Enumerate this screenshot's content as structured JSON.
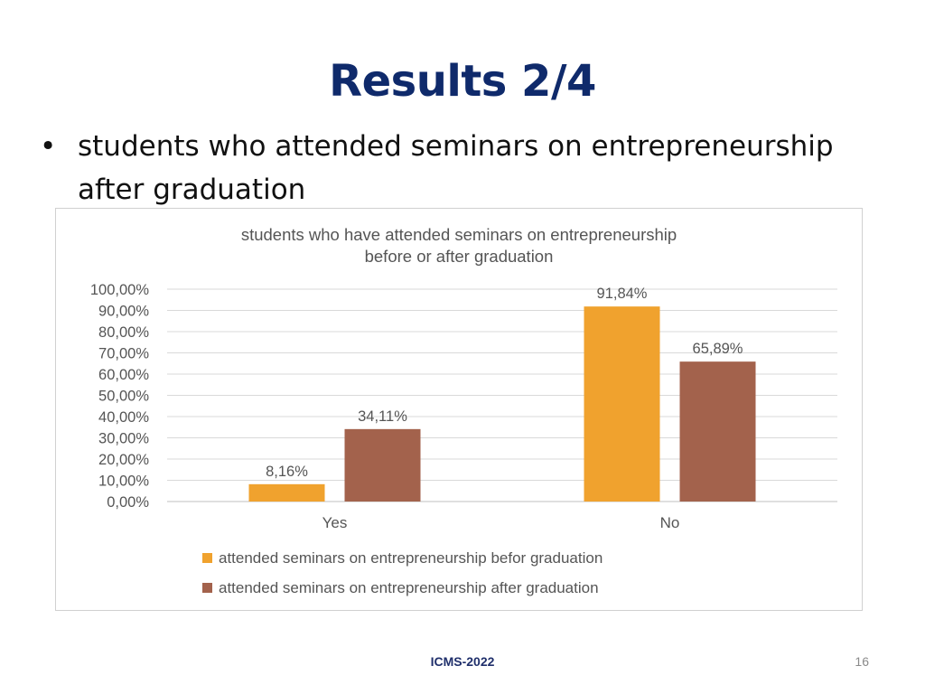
{
  "slide": {
    "title": "Results 2/4",
    "bullet_symbol": "•",
    "bullet_text": "students who attended seminars on entrepreneurship after graduation",
    "footer": "ICMS-2022",
    "page_number": "16"
  },
  "chart_data": {
    "type": "bar",
    "title_lines": [
      "students who have attended seminars on entrepreneurship",
      "before or after graduation"
    ],
    "categories": [
      "Yes",
      "No"
    ],
    "series": [
      {
        "name": "attended seminars on entrepreneurship befor graduation",
        "values": [
          8.16,
          91.84
        ],
        "labels": [
          "8,16%",
          "91,84%"
        ],
        "color": "#f0a22e"
      },
      {
        "name": "attended seminars on entrepreneurship after graduation",
        "values": [
          34.11,
          65.89
        ],
        "labels": [
          "34,11%",
          "65,89%"
        ],
        "color": "#a3624c"
      }
    ],
    "ylim": [
      0,
      100
    ],
    "yticks": [
      0,
      10,
      20,
      30,
      40,
      50,
      60,
      70,
      80,
      90,
      100
    ],
    "ytick_labels": [
      "0,00%",
      "10,00%",
      "20,00%",
      "30,00%",
      "40,00%",
      "50,00%",
      "60,00%",
      "70,00%",
      "80,00%",
      "90,00%",
      "100,00%"
    ],
    "grid": true,
    "legend_position": "bottom"
  }
}
